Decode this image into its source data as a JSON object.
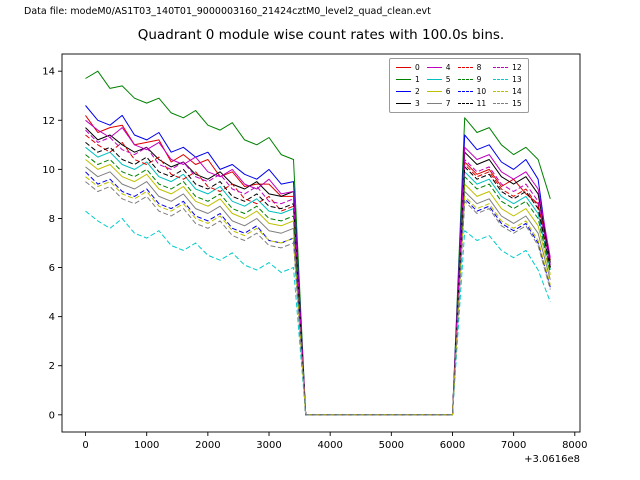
{
  "header": {
    "label": "Data file: modeM0/AS1T03_140T01_9000003160_21424cztM0_level2_quad_clean.evt"
  },
  "title": "Quadrant 0 module wise count rates with 100.0s bins.",
  "chart_data": {
    "type": "line",
    "title": "Quadrant 0 module wise count rates with 100.0s bins.",
    "xlabel": "",
    "ylabel": "",
    "x_offset_label": "+3.0616e8",
    "xlim": [
      -385,
      8085
    ],
    "ylim": [
      -0.7,
      14.7
    ],
    "xticks": [
      0,
      1000,
      2000,
      3000,
      4000,
      5000,
      6000,
      7000,
      8000
    ],
    "yticks": [
      0,
      2,
      4,
      6,
      8,
      10,
      12,
      14
    ],
    "grid": false,
    "legend_position": "upper right inside, 4 columns",
    "x": [
      0,
      200,
      400,
      600,
      800,
      1000,
      1200,
      1400,
      1600,
      1800,
      2000,
      2200,
      2400,
      2600,
      2800,
      3000,
      3200,
      3400,
      3600,
      3800,
      4000,
      4200,
      4400,
      4600,
      4800,
      5000,
      5200,
      5400,
      5600,
      5800,
      6000,
      6200,
      6400,
      6600,
      6800,
      7000,
      7200,
      7400,
      7600
    ],
    "series": [
      {
        "name": "0",
        "color": "#e00000",
        "dash": false,
        "values": [
          12.2,
          11.5,
          11.7,
          11.8,
          11.0,
          11.1,
          11.2,
          10.3,
          10.6,
          10.2,
          10.4,
          9.7,
          9.9,
          9.3,
          9.4,
          9.4,
          8.9,
          8.9,
          0,
          0,
          0,
          0,
          0,
          0,
          0,
          0,
          0,
          0,
          0,
          0,
          0,
          10.3,
          9.8,
          10.0,
          9.3,
          9.6,
          9.0,
          8.6,
          6.3
        ]
      },
      {
        "name": "1",
        "color": "#008000",
        "dash": false,
        "values": [
          13.7,
          14.0,
          13.3,
          13.4,
          12.9,
          12.7,
          12.9,
          12.3,
          12.1,
          12.4,
          11.8,
          11.6,
          11.9,
          11.2,
          11.0,
          11.3,
          10.6,
          10.4,
          0,
          0,
          0,
          0,
          0,
          0,
          0,
          0,
          0,
          0,
          0,
          0,
          0,
          12.1,
          11.5,
          11.7,
          11.0,
          10.6,
          10.9,
          10.4,
          8.8
        ]
      },
      {
        "name": "2",
        "color": "#0000ee",
        "dash": false,
        "values": [
          12.6,
          12.0,
          11.8,
          12.2,
          11.4,
          11.2,
          11.5,
          10.7,
          10.9,
          10.5,
          10.7,
          10.0,
          10.2,
          9.8,
          9.6,
          10.0,
          9.4,
          9.5,
          0,
          0,
          0,
          0,
          0,
          0,
          0,
          0,
          0,
          0,
          0,
          0,
          0,
          11.4,
          10.8,
          11.0,
          10.3,
          10.0,
          10.4,
          9.6,
          6.0
        ]
      },
      {
        "name": "3",
        "color": "#000000",
        "dash": false,
        "values": [
          11.7,
          11.2,
          11.4,
          11.0,
          10.7,
          10.9,
          10.4,
          10.1,
          10.3,
          9.8,
          9.6,
          9.9,
          9.4,
          9.2,
          9.5,
          9.0,
          8.9,
          9.1,
          0,
          0,
          0,
          0,
          0,
          0,
          0,
          0,
          0,
          0,
          0,
          0,
          0,
          10.7,
          10.2,
          10.4,
          9.7,
          9.4,
          9.7,
          9.0,
          6.2
        ]
      },
      {
        "name": "4",
        "color": "#bf00bf",
        "dash": false,
        "values": [
          12.0,
          11.6,
          11.3,
          11.7,
          11.0,
          10.8,
          11.1,
          10.4,
          10.2,
          10.5,
          9.9,
          9.7,
          10.0,
          9.4,
          9.2,
          9.6,
          9.0,
          9.1,
          0,
          0,
          0,
          0,
          0,
          0,
          0,
          0,
          0,
          0,
          0,
          0,
          0,
          10.9,
          10.4,
          10.6,
          9.9,
          9.6,
          9.9,
          9.2,
          6.4
        ]
      },
      {
        "name": "5",
        "color": "#00bfbf",
        "dash": false,
        "values": [
          10.9,
          10.5,
          10.7,
          10.2,
          10.0,
          10.3,
          9.7,
          9.5,
          9.8,
          9.2,
          9.0,
          9.3,
          8.7,
          8.5,
          8.8,
          8.3,
          8.2,
          8.4,
          0,
          0,
          0,
          0,
          0,
          0,
          0,
          0,
          0,
          0,
          0,
          0,
          0,
          9.9,
          9.4,
          9.6,
          8.9,
          8.6,
          8.9,
          8.2,
          5.9
        ]
      },
      {
        "name": "6",
        "color": "#bfbf00",
        "dash": false,
        "values": [
          10.4,
          10.0,
          10.2,
          9.7,
          9.5,
          9.8,
          9.2,
          9.0,
          9.3,
          8.7,
          8.5,
          8.8,
          8.2,
          8.0,
          8.3,
          7.8,
          7.7,
          7.9,
          0,
          0,
          0,
          0,
          0,
          0,
          0,
          0,
          0,
          0,
          0,
          0,
          0,
          9.4,
          8.9,
          9.1,
          8.4,
          8.1,
          8.4,
          7.7,
          5.7
        ]
      },
      {
        "name": "7",
        "color": "#7f7f7f",
        "dash": false,
        "values": [
          10.1,
          9.7,
          9.9,
          9.4,
          9.2,
          9.5,
          8.9,
          8.7,
          9.0,
          8.4,
          8.2,
          8.5,
          7.9,
          7.7,
          8.0,
          7.5,
          7.4,
          7.6,
          0,
          0,
          0,
          0,
          0,
          0,
          0,
          0,
          0,
          0,
          0,
          0,
          0,
          9.1,
          8.6,
          8.8,
          8.1,
          7.8,
          8.1,
          7.4,
          5.5
        ]
      },
      {
        "name": "8",
        "color": "#e00000",
        "dash": true,
        "values": [
          11.4,
          11.0,
          10.7,
          11.1,
          10.4,
          10.2,
          10.5,
          9.8,
          9.6,
          9.9,
          9.3,
          9.1,
          9.4,
          8.8,
          8.6,
          8.9,
          8.3,
          8.5,
          0,
          0,
          0,
          0,
          0,
          0,
          0,
          0,
          0,
          0,
          0,
          0,
          0,
          10.2,
          9.7,
          9.9,
          9.2,
          8.9,
          9.2,
          8.5,
          6.0
        ]
      },
      {
        "name": "9",
        "color": "#008000",
        "dash": true,
        "values": [
          10.6,
          10.2,
          10.4,
          9.9,
          9.7,
          10.0,
          9.4,
          9.2,
          9.5,
          8.9,
          8.7,
          9.0,
          8.4,
          8.2,
          8.5,
          8.0,
          7.9,
          8.1,
          0,
          0,
          0,
          0,
          0,
          0,
          0,
          0,
          0,
          0,
          0,
          0,
          0,
          9.7,
          9.2,
          9.4,
          8.7,
          8.4,
          8.7,
          8.0,
          5.8
        ]
      },
      {
        "name": "10",
        "color": "#0000ee",
        "dash": true,
        "values": [
          9.9,
          9.4,
          9.6,
          9.1,
          8.9,
          9.2,
          8.6,
          8.4,
          8.7,
          8.1,
          7.9,
          8.2,
          7.6,
          7.4,
          7.7,
          7.1,
          7.0,
          7.2,
          0,
          0,
          0,
          0,
          0,
          0,
          0,
          0,
          0,
          0,
          0,
          0,
          0,
          8.8,
          8.3,
          8.5,
          7.8,
          7.5,
          7.8,
          7.0,
          5.2
        ]
      },
      {
        "name": "11",
        "color": "#000000",
        "dash": true,
        "values": [
          11.1,
          10.7,
          10.9,
          10.4,
          10.2,
          10.5,
          9.9,
          9.7,
          10.0,
          9.4,
          9.2,
          9.5,
          8.9,
          8.7,
          9.0,
          8.5,
          8.4,
          8.6,
          0,
          0,
          0,
          0,
          0,
          0,
          0,
          0,
          0,
          0,
          0,
          0,
          0,
          10.1,
          9.6,
          9.8,
          9.1,
          8.8,
          9.1,
          8.4,
          6.0
        ]
      },
      {
        "name": "12",
        "color": "#bf00bf",
        "dash": true,
        "values": [
          11.6,
          11.1,
          11.3,
          10.8,
          10.6,
          10.9,
          10.2,
          10.0,
          10.3,
          9.7,
          9.5,
          9.8,
          9.2,
          9.0,
          9.3,
          8.7,
          8.6,
          8.8,
          0,
          0,
          0,
          0,
          0,
          0,
          0,
          0,
          0,
          0,
          0,
          0,
          0,
          10.4,
          9.9,
          10.1,
          9.4,
          9.1,
          9.4,
          8.7,
          6.1
        ]
      },
      {
        "name": "13",
        "color": "#00cccc",
        "dash": true,
        "values": [
          8.3,
          7.9,
          7.6,
          8.0,
          7.4,
          7.2,
          7.5,
          6.9,
          6.7,
          7.0,
          6.5,
          6.3,
          6.6,
          6.1,
          5.9,
          6.2,
          5.8,
          6.0,
          0,
          0,
          0,
          0,
          0,
          0,
          0,
          0,
          0,
          0,
          0,
          0,
          0,
          7.5,
          7.1,
          7.3,
          6.7,
          6.4,
          6.7,
          5.9,
          4.6
        ]
      },
      {
        "name": "14",
        "color": "#bfbf00",
        "dash": true,
        "values": [
          9.7,
          9.3,
          9.5,
          9.0,
          8.8,
          9.1,
          8.5,
          8.3,
          8.6,
          8.0,
          7.8,
          8.1,
          7.5,
          7.3,
          7.6,
          7.1,
          7.0,
          7.2,
          0,
          0,
          0,
          0,
          0,
          0,
          0,
          0,
          0,
          0,
          0,
          0,
          0,
          8.9,
          8.4,
          8.6,
          7.9,
          7.6,
          7.9,
          7.1,
          5.3
        ]
      },
      {
        "name": "15",
        "color": "#7f7f7f",
        "dash": true,
        "values": [
          9.5,
          9.1,
          9.3,
          8.8,
          8.6,
          8.9,
          8.3,
          8.1,
          8.4,
          7.8,
          7.6,
          7.9,
          7.3,
          7.1,
          7.4,
          6.9,
          6.8,
          7.0,
          0,
          0,
          0,
          0,
          0,
          0,
          0,
          0,
          0,
          0,
          0,
          0,
          0,
          8.7,
          8.2,
          8.4,
          7.7,
          7.4,
          7.7,
          6.9,
          5.1
        ]
      }
    ]
  }
}
